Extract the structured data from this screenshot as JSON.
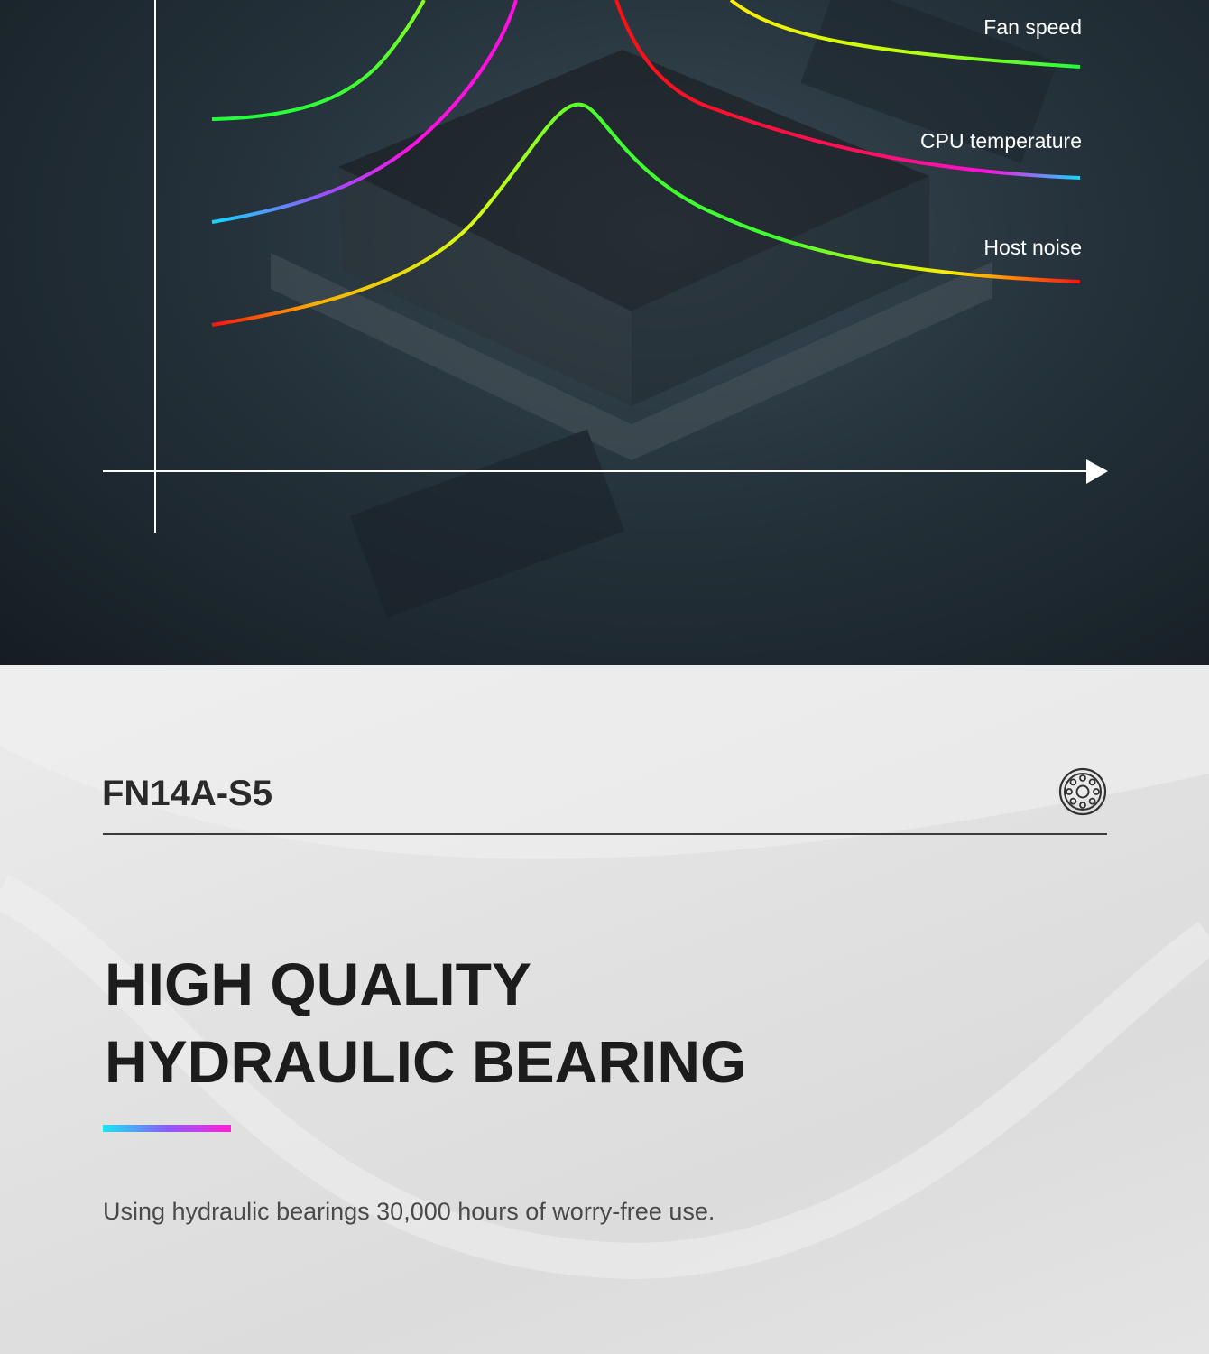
{
  "chart": {
    "labels": [
      "Fan speed",
      "CPU temperature",
      "Host noise"
    ]
  },
  "product": {
    "model": "FN14A-S5",
    "icon": "bearing-icon",
    "headline_line1": "HIGH QUALITY",
    "headline_line2": "HYDRAULIC BEARING",
    "description": "Using hydraulic bearings 30,000 hours of worry-free use.",
    "accent_colors": [
      "#18e6f2",
      "#8a5cf5",
      "#ff1ed8"
    ]
  }
}
